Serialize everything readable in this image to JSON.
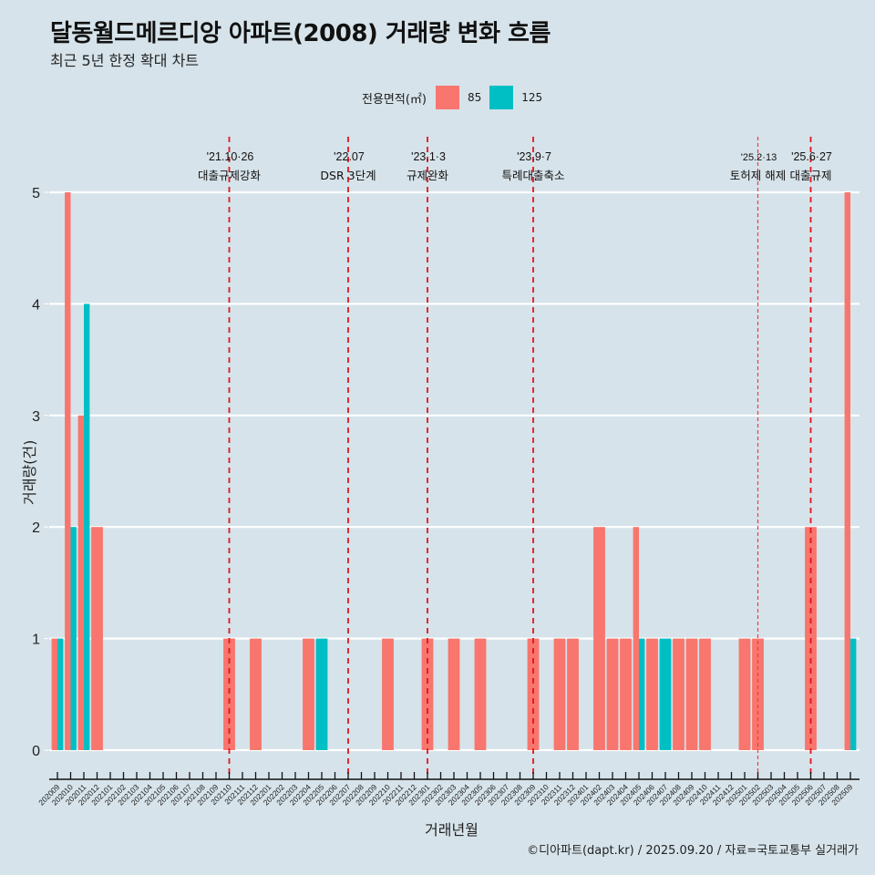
{
  "header": {
    "title": "달동월드메르디앙 아파트(2008) 거래량 변화 흐름",
    "subtitle": "최근 5년 한정 확대 차트"
  },
  "legend": {
    "title": "전용면적(㎡)",
    "items": [
      {
        "label": "85",
        "color": "#f8766d"
      },
      {
        "label": "125",
        "color": "#00bfc4"
      }
    ]
  },
  "caption": "©디아파트(dapt.kr) / 2025.09.20 / 자료=국토교통부 실거래가",
  "chart_data": {
    "type": "bar",
    "title": "달동월드메르디앙 아파트(2008) 거래량 변화 흐름",
    "subtitle": "최근 5년 한정 확대 차트",
    "xlabel": "거래년월",
    "ylabel": "거래량(건)",
    "ylim": [
      0,
      5
    ],
    "yticks": [
      0,
      1,
      2,
      3,
      4,
      5
    ],
    "grid": true,
    "legend_position": "top",
    "categories": [
      "202009",
      "202010",
      "202011",
      "202012",
      "202101",
      "202102",
      "202103",
      "202104",
      "202105",
      "202106",
      "202107",
      "202108",
      "202109",
      "202110",
      "202111",
      "202112",
      "202201",
      "202202",
      "202203",
      "202204",
      "202205",
      "202206",
      "202207",
      "202208",
      "202209",
      "202210",
      "202211",
      "202212",
      "202301",
      "202302",
      "202303",
      "202304",
      "202305",
      "202306",
      "202307",
      "202308",
      "202309",
      "202310",
      "202311",
      "202312",
      "202401",
      "202402",
      "202403",
      "202404",
      "202405",
      "202406",
      "202407",
      "202408",
      "202409",
      "202410",
      "202411",
      "202412",
      "202501",
      "202502",
      "202503",
      "202504",
      "202505",
      "202506",
      "202507",
      "202508",
      "202509"
    ],
    "series": [
      {
        "name": "85",
        "color": "#f8766d",
        "values": [
          1,
          5,
          3,
          2,
          0,
          0,
          0,
          0,
          0,
          0,
          0,
          0,
          0,
          1,
          0,
          1,
          0,
          0,
          0,
          1,
          0,
          0,
          0,
          0,
          0,
          1,
          0,
          0,
          1,
          0,
          1,
          0,
          1,
          0,
          0,
          0,
          1,
          0,
          1,
          1,
          0,
          2,
          1,
          1,
          2,
          1,
          0,
          1,
          1,
          1,
          0,
          0,
          1,
          1,
          0,
          0,
          0,
          2,
          0,
          0,
          5
        ]
      },
      {
        "name": "125",
        "color": "#00bfc4",
        "values": [
          1,
          2,
          4,
          0,
          0,
          0,
          0,
          0,
          0,
          0,
          0,
          0,
          0,
          0,
          0,
          0,
          0,
          0,
          0,
          0,
          1,
          0,
          0,
          0,
          0,
          0,
          0,
          0,
          0,
          0,
          0,
          0,
          0,
          0,
          0,
          0,
          0,
          0,
          0,
          0,
          0,
          0,
          0,
          0,
          1,
          0,
          1,
          0,
          0,
          0,
          0,
          0,
          0,
          0,
          0,
          0,
          0,
          0,
          0,
          0,
          1
        ]
      }
    ],
    "annotations": [
      {
        "month": "202110",
        "date": "'21.10·26",
        "label": "대출규제강화",
        "style": "dashed"
      },
      {
        "month": "202207",
        "date": "'22.07",
        "label": "DSR 3단계",
        "style": "dashed"
      },
      {
        "month": "202301",
        "date": "'23.1·3",
        "label": "규제완화",
        "style": "dashed"
      },
      {
        "month": "202309",
        "date": "'23.9·7",
        "label": "특례대출축소",
        "style": "dashed"
      },
      {
        "month": "202502",
        "date": "'25.2·13",
        "label": "토허제 해제",
        "style": "dotted"
      },
      {
        "month": "202506",
        "date": "'25.6·27",
        "label": "대출규제",
        "style": "dashed"
      }
    ]
  }
}
